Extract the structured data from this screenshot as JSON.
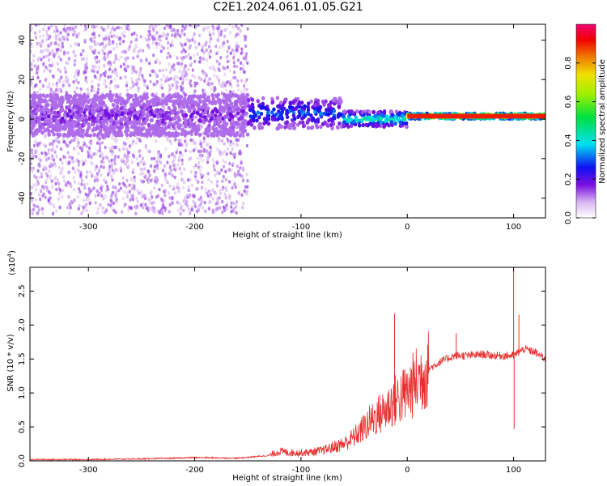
{
  "title": "C2E1.2024.061.01.05.G21",
  "chart_data": [
    {
      "type": "heatmap",
      "description_panel": "spectrogram",
      "xlabel": "Height of straight line (km)",
      "ylabel": "Frequency (Hz)",
      "xlim": [
        -355,
        130
      ],
      "ylim": [
        -50,
        48
      ],
      "xticks": [
        -300,
        -200,
        -100,
        0,
        100
      ],
      "yticks": [
        -40,
        -20,
        0,
        20,
        40
      ],
      "colorbar": {
        "label": "Normalized spectral amplitude",
        "range": [
          0.0,
          1.0
        ],
        "ticks": [
          0.0,
          0.2,
          0.4,
          0.6,
          0.8
        ],
        "tick_labels": [
          "0.0",
          "0.2",
          "0.4",
          "0.6",
          "0.8"
        ],
        "colormap": "rainbow (white-purple-blue-cyan-green-yellow-red-magenta)"
      },
      "features": [
        {
          "x_range": [
            -355,
            -150
          ],
          "band_center_hz": 2,
          "band_halfwidth_hz": 8,
          "amplitude": 0.15,
          "scatter_halfwidth_hz": 50
        },
        {
          "x_range": [
            -150,
            -60
          ],
          "band_center_hz": 3,
          "band_halfwidth_hz": 6,
          "amplitude": 0.3
        },
        {
          "x_range": [
            -60,
            0
          ],
          "band_center_hz": 0,
          "band_halfwidth_hz": 3,
          "amplitude": 0.45
        },
        {
          "x_range": [
            0,
            130
          ],
          "band_center_hz": 1.5,
          "band_halfwidth_hz": 1,
          "amplitude": 0.9
        }
      ]
    },
    {
      "type": "line",
      "xlabel": "Height of straight line (km)",
      "ylabel": "SNR (10 * v/v)",
      "multiplier_label": "(x10",
      "multiplier_exp": "4",
      "xlim": [
        -355,
        130
      ],
      "ylim": [
        0,
        2.85
      ],
      "xticks": [
        -300,
        -200,
        -100,
        0,
        100
      ],
      "yticks": [
        0.0,
        0.5,
        1.0,
        1.5,
        2.0,
        2.5
      ],
      "ytick_labels": [
        "0.0",
        "0.5",
        "1.0",
        "1.5",
        "2.0",
        "2.5"
      ],
      "color": "#e83030",
      "series": [
        {
          "x": [
            -355,
            -300,
            -250,
            -220,
            -200,
            -160,
            -130,
            -120,
            -110,
            -100,
            -90,
            -80,
            -70,
            -60,
            -50,
            -40,
            -30,
            -20,
            -15,
            -10,
            -5,
            0,
            10,
            20,
            30,
            40,
            45,
            50,
            60,
            70,
            80,
            90,
            95,
            100,
            105,
            110,
            120,
            130
          ],
          "y": [
            0.02,
            0.02,
            0.03,
            0.04,
            0.05,
            0.04,
            0.08,
            0.14,
            0.12,
            0.12,
            0.13,
            0.15,
            0.2,
            0.25,
            0.35,
            0.5,
            0.65,
            0.75,
            0.85,
            0.9,
            0.95,
            1.0,
            1.2,
            1.35,
            1.45,
            1.52,
            1.55,
            1.55,
            1.55,
            1.57,
            1.55,
            1.55,
            1.55,
            1.55,
            1.6,
            1.65,
            1.6,
            1.5
          ]
        }
      ],
      "spikes": [
        {
          "x": -12,
          "y": 2.17
        },
        {
          "x": 46,
          "y": 1.88
        },
        {
          "x": 100,
          "y": 2.85
        },
        {
          "x": 100.5,
          "y": 0.47
        },
        {
          "x": 105,
          "y": 2.15
        }
      ]
    }
  ]
}
